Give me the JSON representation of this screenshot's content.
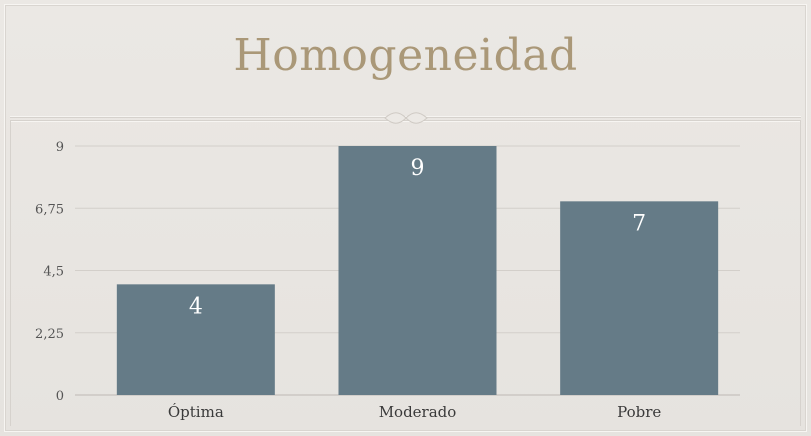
{
  "chart_data": {
    "type": "bar",
    "title": "Homogeneidad",
    "categories": [
      "Óptima",
      "Moderado",
      "Pobre"
    ],
    "values": [
      4,
      9,
      7
    ],
    "data_labels": [
      "4",
      "9",
      "7"
    ],
    "y_ticks": [
      0,
      2.25,
      4.5,
      6.75,
      9
    ],
    "y_tick_labels": [
      "0",
      "2,25",
      "4,5",
      "6,75",
      "9"
    ],
    "ylim": [
      0,
      9
    ],
    "xlabel": "",
    "ylabel": "",
    "grid": true,
    "legend": "none",
    "bar_color": "#657b87",
    "title_color": "#aa9878"
  }
}
